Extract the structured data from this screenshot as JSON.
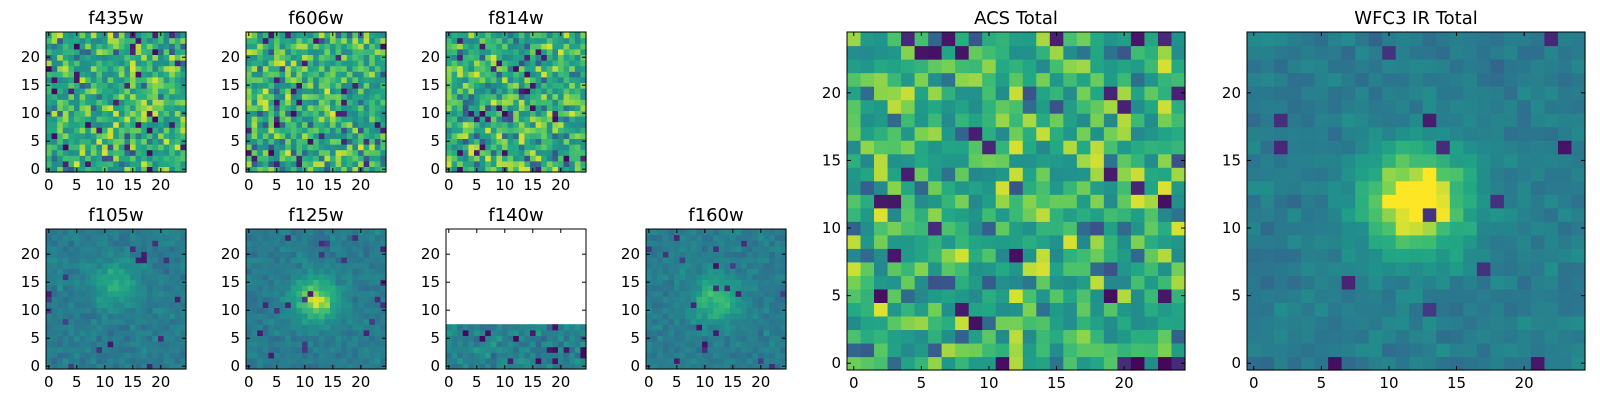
{
  "chart_data": {
    "type": "heatmap",
    "colormap": "viridis",
    "value_range": [
      0,
      1
    ],
    "pixel_grid": [
      25,
      25
    ],
    "panels": [
      {
        "id": "f435w",
        "title": "f435w",
        "pattern": "noise",
        "seed": 11,
        "x_ticks": [
          "0",
          "5",
          "10",
          "15",
          "20"
        ],
        "y_ticks": [
          "0",
          "5",
          "10",
          "15",
          "20"
        ]
      },
      {
        "id": "f606w",
        "title": "f606w",
        "pattern": "noise",
        "seed": 23,
        "x_ticks": [
          "0",
          "5",
          "10",
          "15",
          "20"
        ],
        "y_ticks": [
          "0",
          "5",
          "10",
          "15",
          "20"
        ]
      },
      {
        "id": "f814w",
        "title": "f814w",
        "pattern": "noise",
        "seed": 37,
        "x_ticks": [
          "0",
          "5",
          "10",
          "15",
          "20"
        ],
        "y_ticks": [
          "0",
          "5",
          "10",
          "15",
          "20"
        ]
      },
      {
        "id": "f105w",
        "title": "f105w",
        "pattern": "source",
        "source_center": [
          12,
          15
        ],
        "source_strength": 0.25,
        "seed": 41,
        "x_ticks": [
          "0",
          "5",
          "10",
          "15",
          "20"
        ],
        "y_ticks": [
          "0",
          "5",
          "10",
          "15",
          "20"
        ]
      },
      {
        "id": "f125w",
        "title": "f125w",
        "pattern": "source",
        "source_center": [
          12,
          12
        ],
        "source_strength": 0.45,
        "seed": 53,
        "x_ticks": [
          "0",
          "5",
          "10",
          "15",
          "20"
        ],
        "y_ticks": [
          "0",
          "5",
          "10",
          "15",
          "20"
        ]
      },
      {
        "id": "f140w",
        "title": "f140w",
        "pattern": "partial",
        "data_rows": 8,
        "seed": 61,
        "x_ticks": [
          "0",
          "5",
          "10",
          "15",
          "20"
        ],
        "y_ticks": [
          "0",
          "5",
          "10",
          "15",
          "20"
        ]
      },
      {
        "id": "f160w",
        "title": "f160w",
        "pattern": "source",
        "source_center": [
          12,
          12
        ],
        "source_strength": 0.35,
        "seed": 71,
        "x_ticks": [
          "0",
          "5",
          "10",
          "15",
          "20"
        ],
        "y_ticks": [
          "0",
          "5",
          "10",
          "15",
          "20"
        ]
      },
      {
        "id": "acs_total",
        "title": "ACS Total",
        "pattern": "noise",
        "seed": 83,
        "x_ticks": [
          "0",
          "5",
          "10",
          "15",
          "20"
        ],
        "y_ticks": [
          "0",
          "5",
          "10",
          "15",
          "20"
        ]
      },
      {
        "id": "wfc3_ir_total",
        "title": "WFC3 IR Total",
        "pattern": "source",
        "source_center": [
          12,
          12
        ],
        "source_strength": 0.6,
        "seed": 97,
        "x_ticks": [
          "0",
          "5",
          "10",
          "15",
          "20"
        ],
        "y_ticks": [
          "0",
          "5",
          "10",
          "15",
          "20"
        ]
      }
    ]
  }
}
